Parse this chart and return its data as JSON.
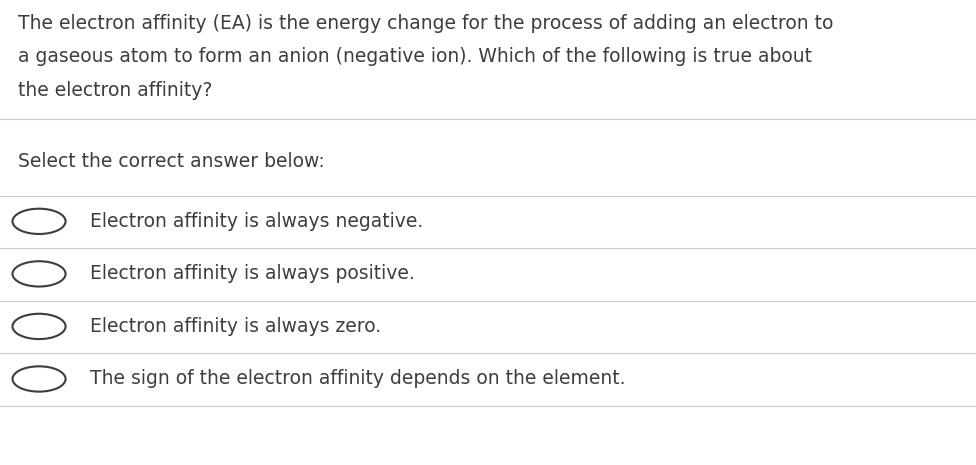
{
  "background_color": "#ffffff",
  "text_color": "#3d3d3d",
  "question_lines": [
    "The electron affinity (EA) is the energy change for the process of adding an electron to",
    "a gaseous atom to form an anion (negative ion). Which of the following is true about",
    "the electron affinity?"
  ],
  "prompt_text": "Select the correct answer below:",
  "options": [
    "Electron affinity is always negative.",
    "Electron affinity is always positive.",
    "Electron affinity is always zero.",
    "The sign of the electron affinity depends on the element."
  ],
  "divider_color": "#cccccc",
  "font_size_question": 13.5,
  "font_size_prompt": 13.5,
  "font_size_option": 13.5,
  "circle_color": "#3d3d3d",
  "fig_width": 9.76,
  "fig_height": 4.65
}
